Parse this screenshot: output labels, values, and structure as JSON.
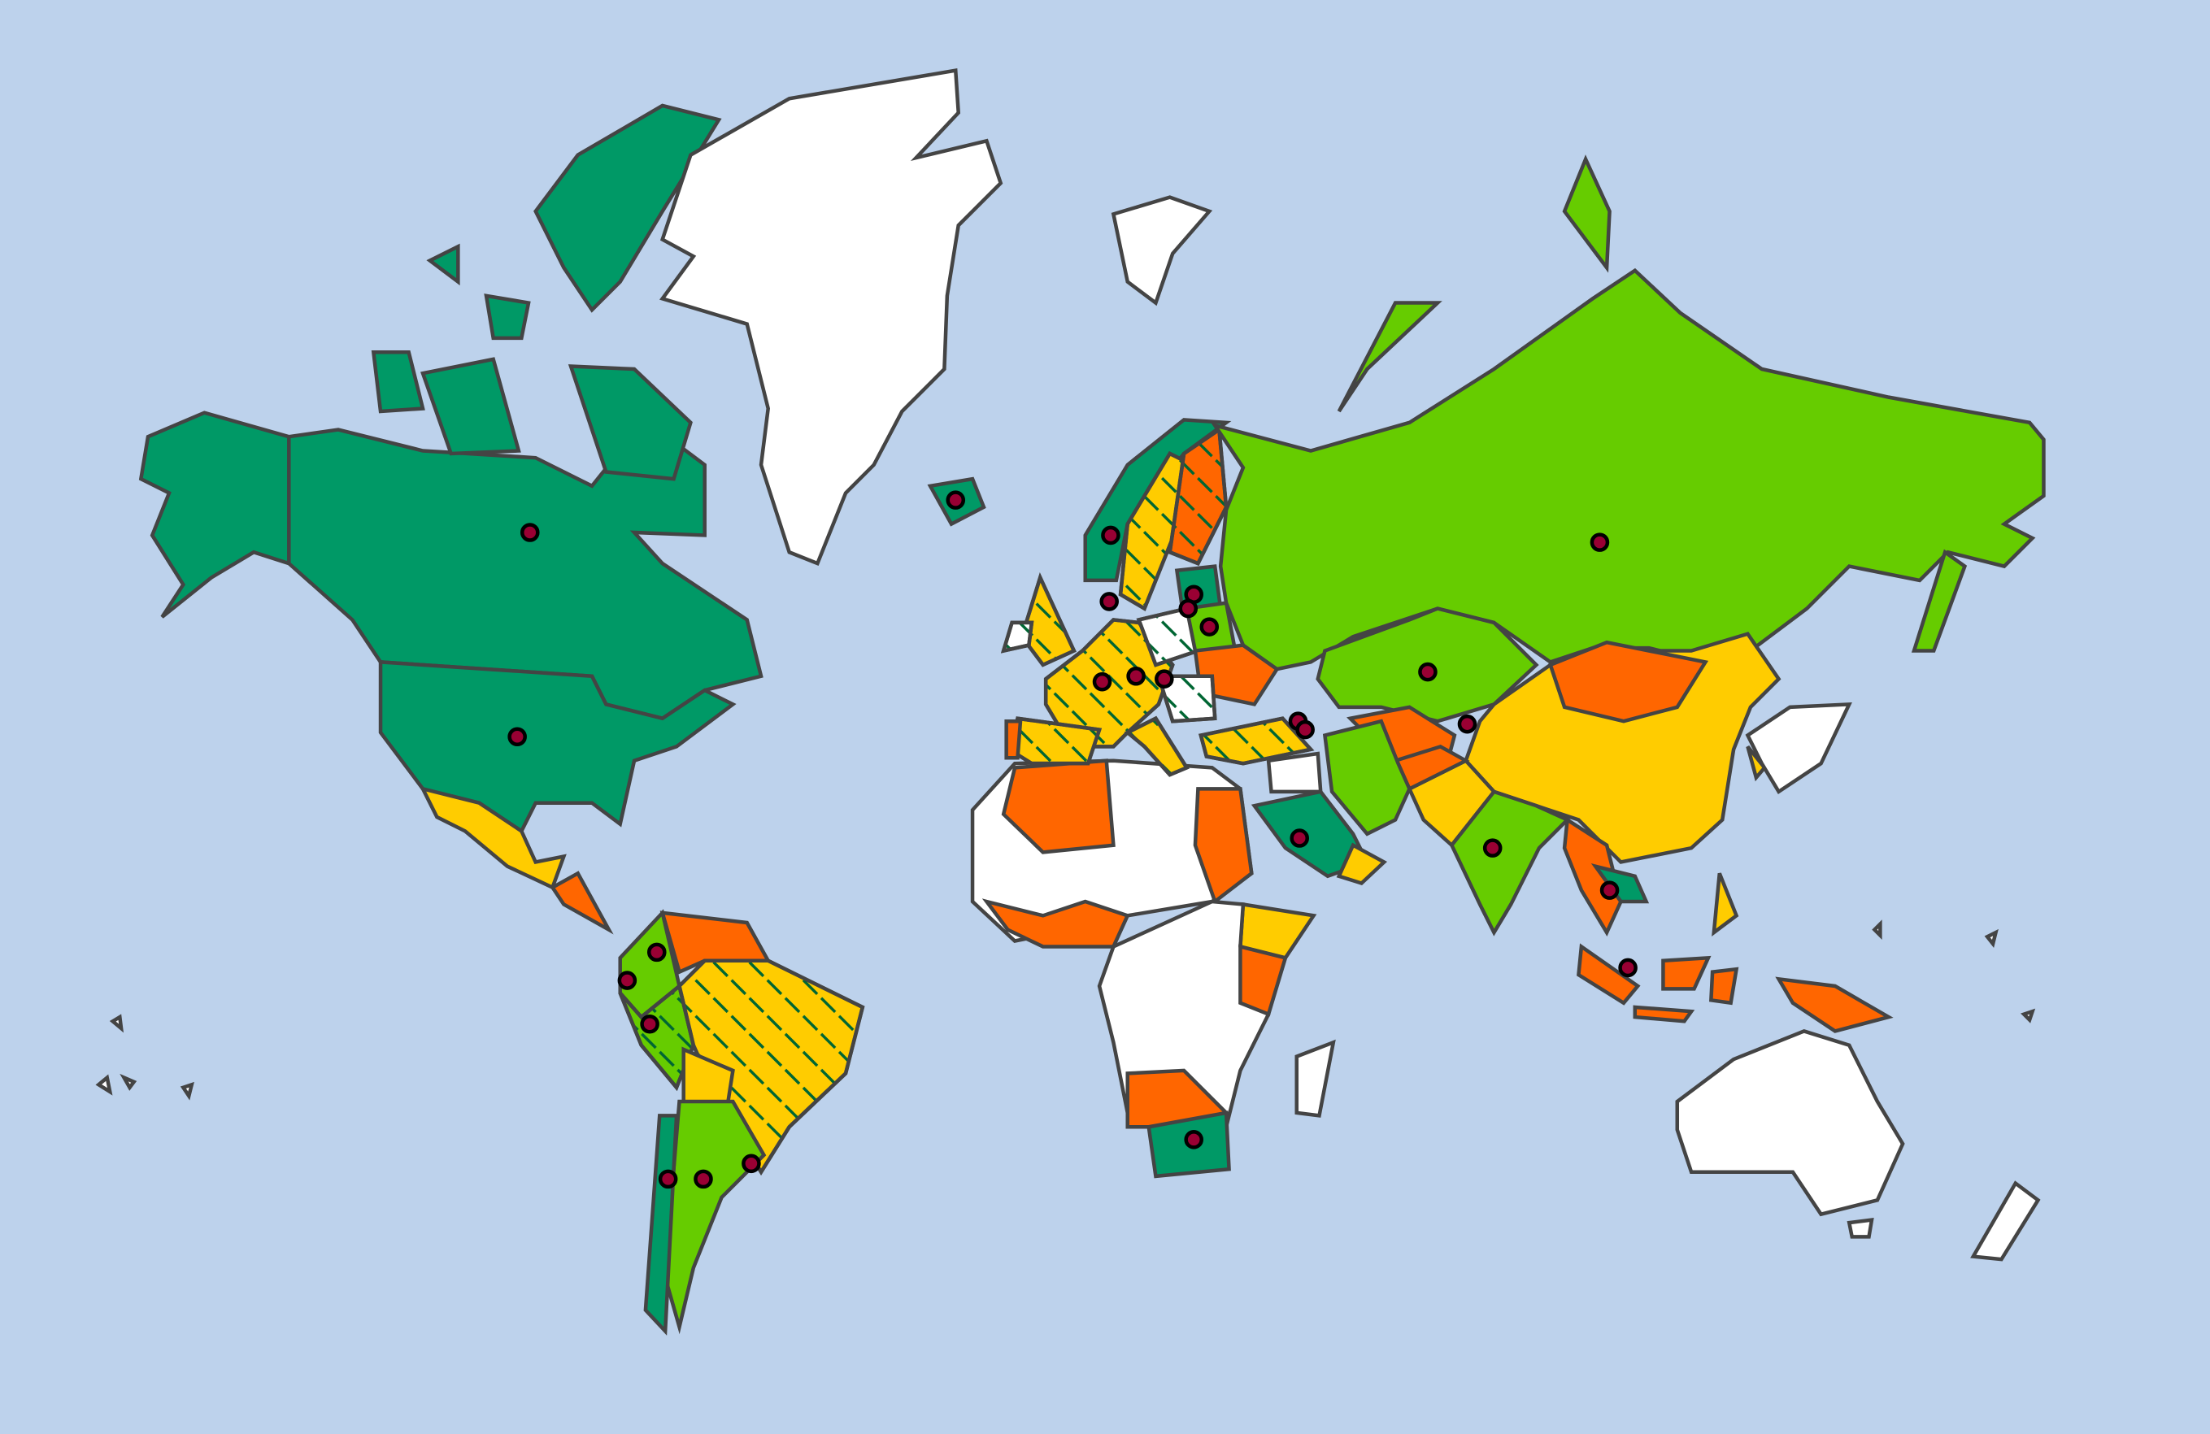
{
  "map": {
    "palette": {
      "ocean": "#bdd2ec",
      "dark-green": "#009966",
      "light-green": "#66cc00",
      "yellow": "#ffcc00",
      "orange": "#ff6600",
      "white": "#ffffff",
      "border": "#444444",
      "hatch": "#006633",
      "marker": "#990033"
    },
    "regions": {
      "alaska": "dark-green",
      "canada": "dark-green",
      "arctic-islands": "dark-green",
      "usa": "dark-green",
      "mexico": "yellow",
      "central-america": "orange",
      "greenland": "white",
      "iceland": "dark-green",
      "colombia": "light-green",
      "venezuela": "orange",
      "peru": "light-green-hatched",
      "brazil": "yellow-hatched",
      "bolivia": "yellow",
      "argentina": "light-green",
      "chile": "dark-green",
      "north-africa": "white",
      "algeria": "orange",
      "west-africa": "orange",
      "sudan": "orange",
      "ethiopia": "yellow",
      "central-africa": "white",
      "east-africa": "orange",
      "southern-africa": "orange",
      "south-africa": "dark-green",
      "madagascar": "white",
      "norway": "dark-green",
      "sweden": "yellow-hatched",
      "finland": "orange-hatched",
      "uk": "yellow-hatched",
      "ireland": "white-hatched",
      "western-europe": "yellow-hatched",
      "spain": "yellow-hatched",
      "portugal": "orange",
      "poland": "white-hatched",
      "baltics": "dark-green",
      "belarus": "light-green",
      "ukraine": "orange",
      "balkans": "white-hatched",
      "turkey": "yellow-hatched",
      "italy": "yellow-hatched",
      "russia": "light-green",
      "kazakhstan": "light-green",
      "central-asia": "orange",
      "china": "yellow",
      "mongolia": "orange",
      "india": "light-green",
      "pakistan": "yellow",
      "afghanistan": "orange",
      "iran": "light-green",
      "iraq": "white",
      "saudi-arabia": "dark-green",
      "oman-yemen": "yellow",
      "myanmar": "orange",
      "thailand": "dark-green",
      "malaysia": "orange",
      "indonesia": "orange",
      "philippines": "yellow",
      "japan": "white",
      "korea": "yellow",
      "australia": "white",
      "new-zealand": "white",
      "svalbard": "white",
      "pacific-islands": "white"
    },
    "markers": [
      "canada",
      "usa",
      "iceland",
      "norway",
      "denmark",
      "estonia",
      "latvia",
      "belarus",
      "france",
      "switzerland",
      "austria",
      "georgia",
      "armenia",
      "russia",
      "kazakhstan",
      "kyrgyzstan",
      "saudi-arabia",
      "india",
      "thailand",
      "singapore",
      "south-africa",
      "colombia",
      "ecuador",
      "peru",
      "chile",
      "argentina",
      "uruguay"
    ]
  }
}
